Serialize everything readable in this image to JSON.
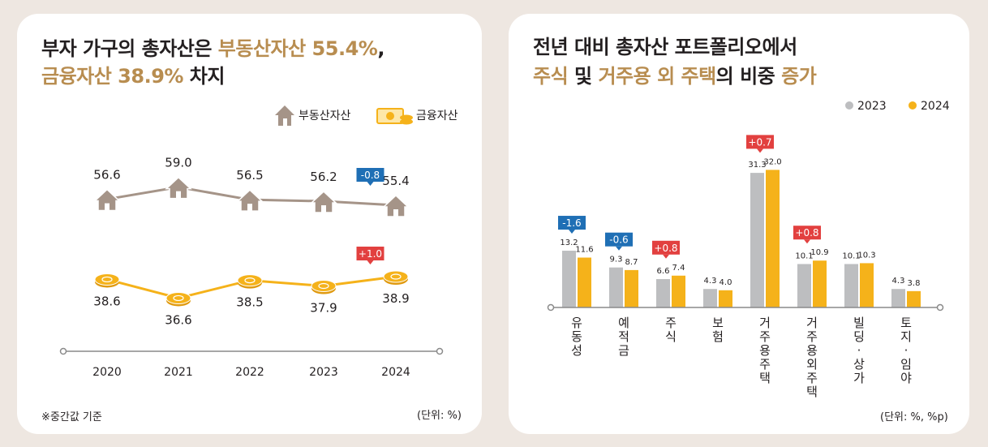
{
  "left": {
    "title": {
      "l1_a": "부자 가구의 총자산은 ",
      "l1_b": "부동산자산 55.4%",
      "l1_c": ",",
      "l2_a": "금융자산 38.9%",
      "l2_b": " 차지"
    },
    "legend": {
      "real_estate": "부동산자산",
      "financial": "금융자산"
    },
    "footnote": "※중간값 기준",
    "unit": "(단위: %)"
  },
  "right": {
    "title": {
      "l1": "전년 대비 총자산 포트폴리오에서",
      "l2_a": "주식",
      "l2_b": " 및 ",
      "l2_c": "거주용 외 주택",
      "l2_d": "의 비중 ",
      "l2_e": "증가"
    },
    "legend": {
      "s2023": "2023",
      "s2024": "2024"
    },
    "unit": "(단위: %, %p)"
  },
  "colors": {
    "accent_gold": "#b88d50",
    "real_estate_line": "#a59488",
    "financial_line": "#f5b21a",
    "bar_2023": "#bdbec0",
    "bar_2024": "#f5b21a",
    "badge_down": "#1f6fb5",
    "badge_up": "#e2403f"
  },
  "chart_data": [
    {
      "type": "line",
      "x": [
        "2020",
        "2021",
        "2022",
        "2023",
        "2024"
      ],
      "series": [
        {
          "name": "부동산자산",
          "values": [
            56.6,
            59.0,
            56.5,
            56.2,
            55.4
          ],
          "labels": [
            "56.6",
            "59.0",
            "56.5",
            "56.2",
            "55.4"
          ],
          "icon": "house-icon"
        },
        {
          "name": "금융자산",
          "values": [
            38.6,
            36.6,
            38.5,
            37.9,
            38.9
          ],
          "labels": [
            "38.6",
            "36.6",
            "38.5",
            "37.9",
            "38.9"
          ],
          "icon": "coin-icon"
        }
      ],
      "annotations": [
        {
          "series": "부동산자산",
          "x": "2024",
          "text": "-0.8",
          "kind": "down"
        },
        {
          "series": "금융자산",
          "x": "2024",
          "text": "+1.0",
          "kind": "up"
        }
      ],
      "legend": "top-right",
      "grid": false
    },
    {
      "type": "bar",
      "categories": [
        "유동성",
        "예적금",
        "주식",
        "보험",
        "거주용 주택",
        "거주용 외 주택",
        "빌딩·상가",
        "토지·임야"
      ],
      "category_lines": [
        [
          "유",
          "동",
          "성"
        ],
        [
          "예",
          "적",
          "금"
        ],
        [
          "주",
          "식"
        ],
        [
          "보",
          "험"
        ],
        [
          "거",
          "주",
          "용",
          "주",
          "택"
        ],
        [
          "거",
          "주",
          "용",
          "외",
          "주",
          "택"
        ],
        [
          "빌",
          "딩",
          "·",
          "상",
          "가"
        ],
        [
          "토",
          "지",
          "·",
          "임",
          "야"
        ]
      ],
      "series": [
        {
          "name": "2023",
          "values": [
            13.2,
            9.3,
            6.6,
            4.3,
            31.3,
            10.1,
            10.1,
            4.3
          ],
          "labels": [
            "13.2",
            "9.3",
            "6.6",
            "4.3",
            "31.3",
            "10.1",
            "10.1",
            "4.3"
          ]
        },
        {
          "name": "2024",
          "values": [
            11.6,
            8.7,
            7.4,
            4.0,
            32.0,
            10.9,
            10.3,
            3.8
          ],
          "labels": [
            "11.6",
            "8.7",
            "7.4",
            "4.0",
            "32.0",
            "10.9",
            "10.3",
            "3.8"
          ]
        }
      ],
      "annotations": [
        {
          "category": "유동성",
          "text": "-1.6",
          "kind": "down"
        },
        {
          "category": "예적금",
          "text": "-0.6",
          "kind": "down"
        },
        {
          "category": "주식",
          "text": "+0.8",
          "kind": "up"
        },
        {
          "category": "거주용 주택",
          "text": "+0.7",
          "kind": "up"
        },
        {
          "category": "거주용 외 주택",
          "text": "+0.8",
          "kind": "up"
        }
      ],
      "legend": "top-right",
      "grid": false
    }
  ]
}
